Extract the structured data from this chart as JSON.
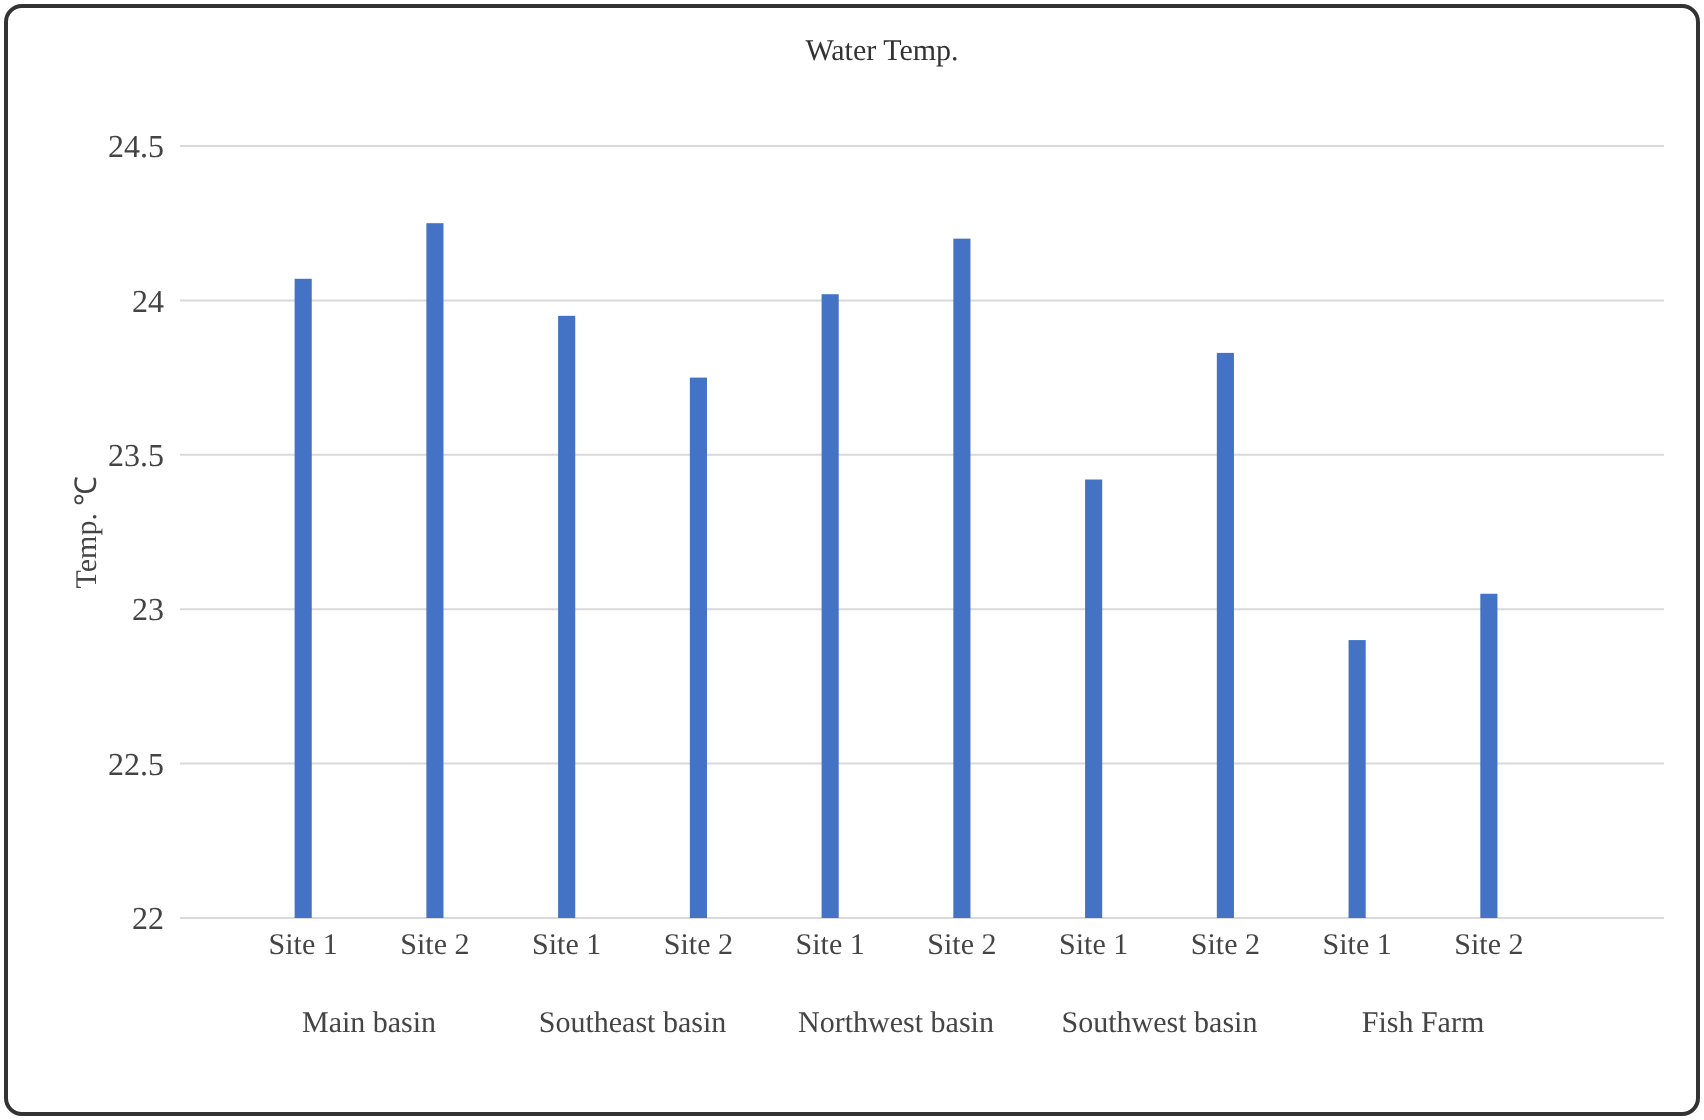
{
  "chart_data": {
    "type": "bar",
    "title": "Water Temp.",
    "ylabel": "Temp. ℃",
    "categories": [
      "Site 1",
      "Site 2",
      "Site 1",
      "Site 2",
      "Site 1",
      "Site 2",
      "Site 1",
      "Site 2",
      "Site 1",
      "Site 2"
    ],
    "values": [
      24.07,
      24.25,
      23.95,
      23.75,
      24.02,
      24.2,
      23.42,
      23.83,
      22.9,
      23.05
    ],
    "color": "#4472c4",
    "ylim": [
      22,
      24.5
    ],
    "yticks": [
      22,
      22.5,
      23,
      23.5,
      24,
      24.5
    ],
    "grid": "y",
    "annotations": [
      "Main basin",
      "Southeast basin",
      "Northwest basin",
      "Southwest basin",
      "Fish Farm"
    ]
  }
}
